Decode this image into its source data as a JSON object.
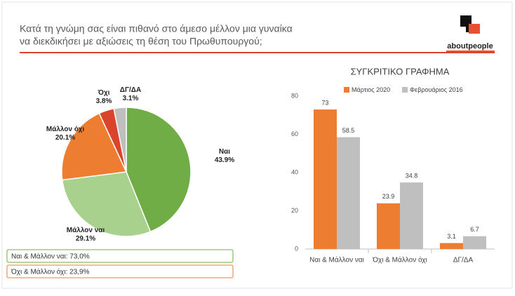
{
  "header": {
    "title_lines": [
      "Κατά τη γνώμη σας είναι πιθανό στο άμεσο μέλλον μια γυναίκα",
      "να διεκδικήσει με αξιώσεις τη θέση του Πρωθυπουργού;"
    ],
    "logo": "aboutpeople"
  },
  "summary_boxes": [
    "Ναι & Μάλλον ναι: 73,0%",
    "Όχι & Μάλλον όχι: 23,9%"
  ],
  "chart_data": [
    {
      "type": "pie",
      "categories": [
        "Ναι",
        "Μάλλον ναι",
        "Μάλλον όχι",
        "Όχι",
        "ΔΓ/ΔΑ"
      ],
      "values": [
        43.9,
        29.1,
        20.1,
        3.8,
        3.1
      ],
      "value_labels": [
        "43.9%",
        "29.1%",
        "20.1%",
        "3.8%",
        "3.1%"
      ],
      "colors": [
        "#70ad47",
        "#a9d18e",
        "#ed7d31",
        "#d9442a",
        "#bfbfbf"
      ]
    },
    {
      "type": "bar",
      "title": "ΣΥΓΚΡΙΤΙΚΟ ΓΡΑΦΗΜΑ",
      "categories": [
        "Ναι & Μάλλον ναι",
        "Όχι & Μάλλον όχι",
        "ΔΓ/ΔΑ"
      ],
      "series": [
        {
          "name": "Μάρτιος 2020",
          "color": "#ed7d31",
          "values": [
            73,
            23.9,
            3.1
          ]
        },
        {
          "name": "Φεβρουάριος 2016",
          "color": "#bfbfbf",
          "values": [
            58.5,
            34.8,
            6.7
          ]
        }
      ],
      "ylim": [
        0,
        80
      ],
      "yticks": [
        0,
        20,
        40,
        60,
        80
      ],
      "legend": "top"
    }
  ]
}
